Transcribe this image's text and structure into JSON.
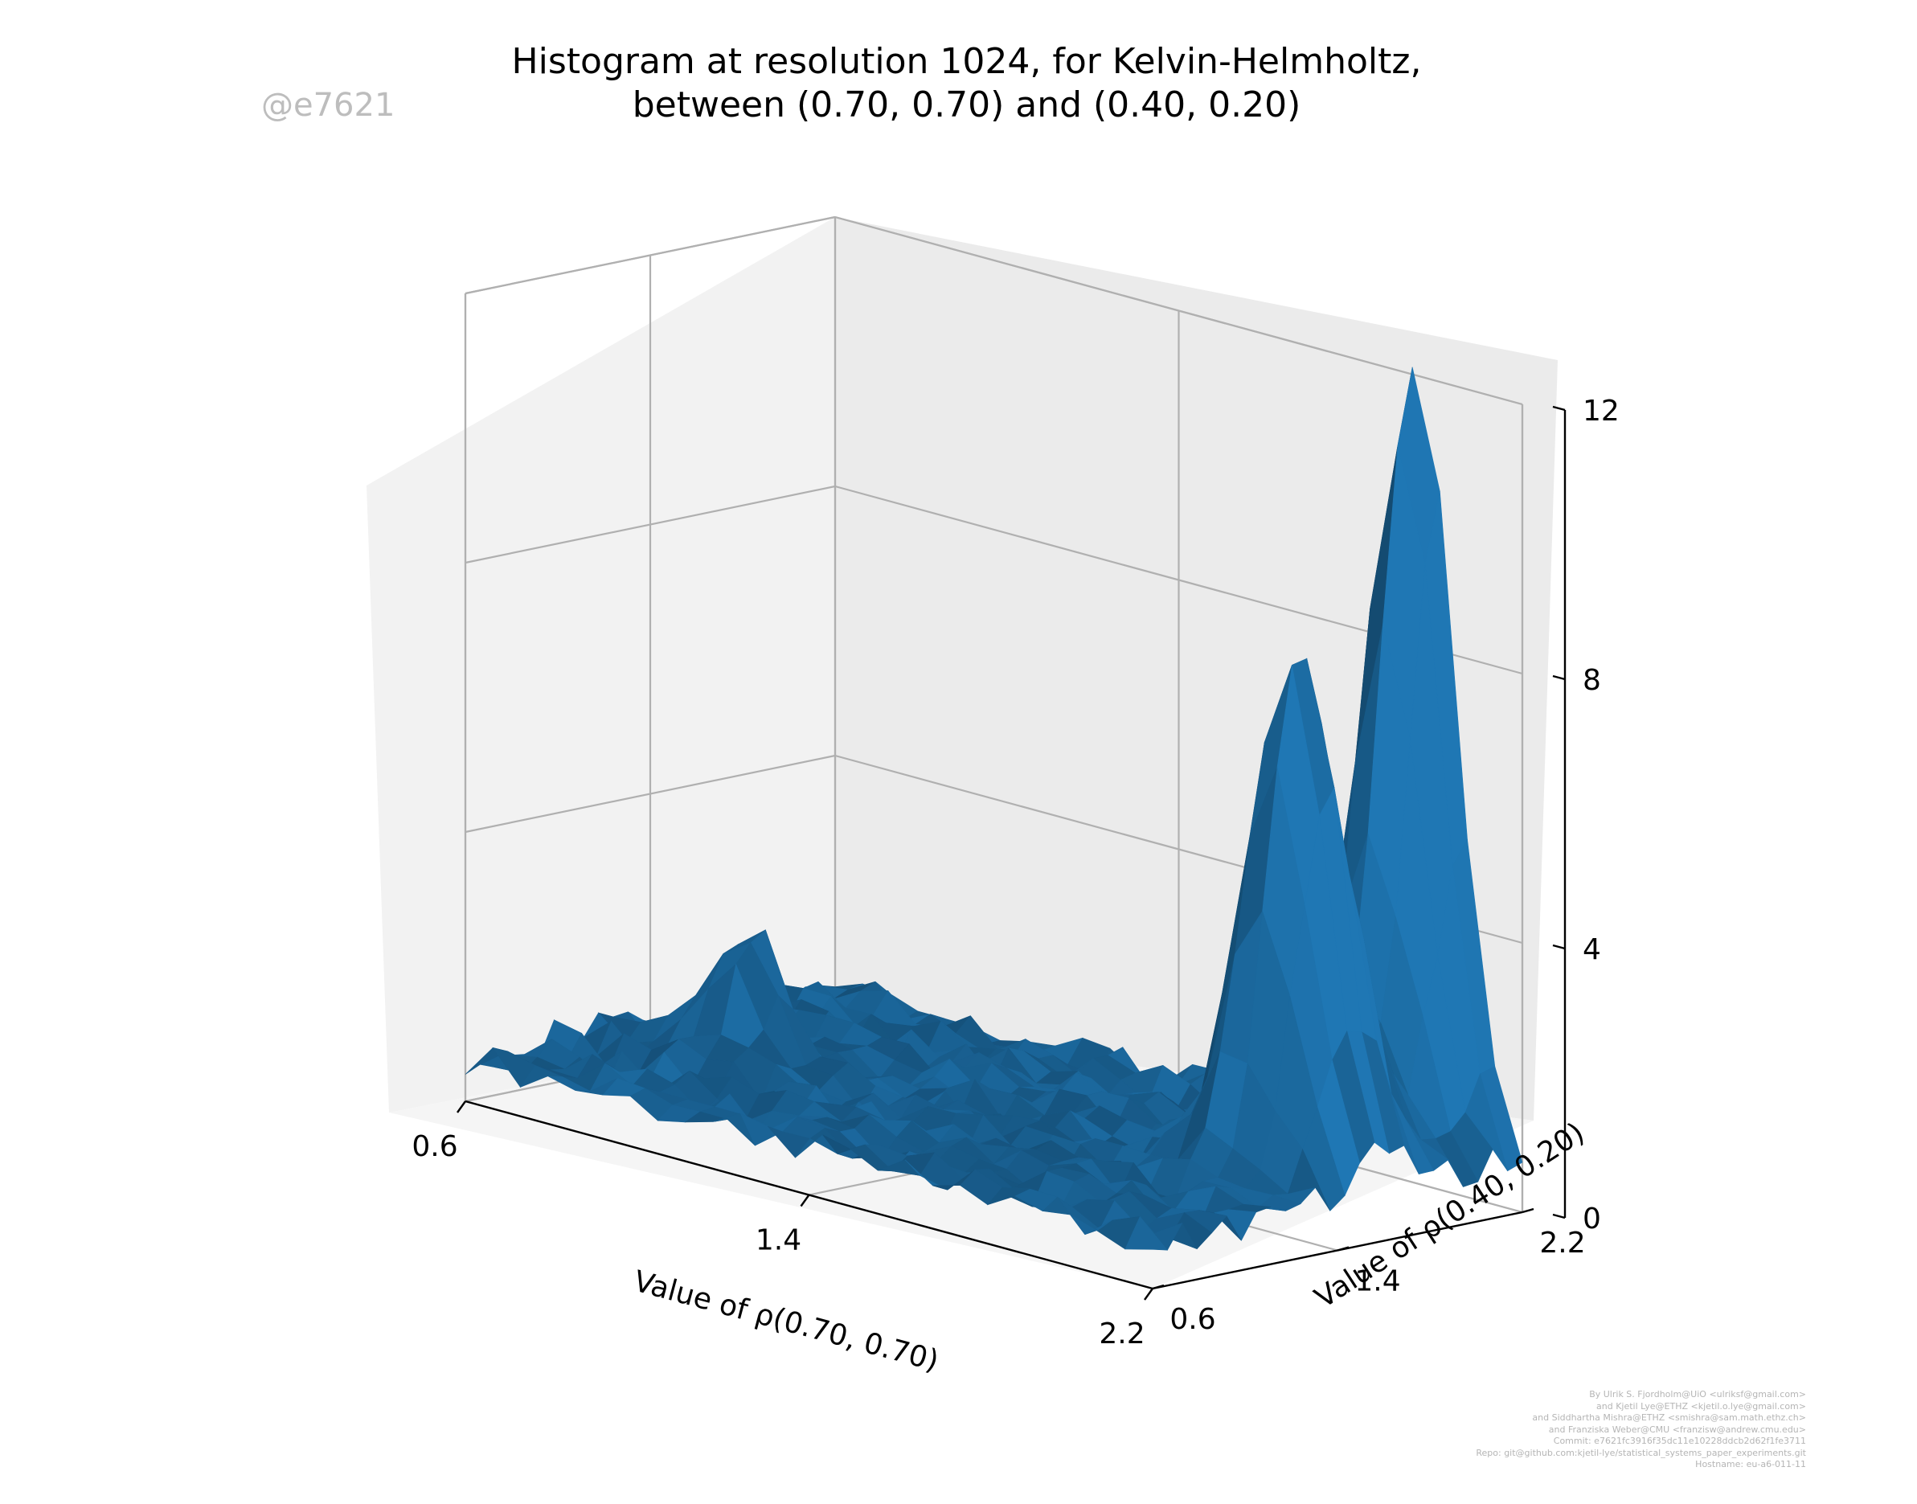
{
  "chart_data": {
    "type": "surface3d",
    "title_line1": "Histogram at resolution 1024, for Kelvin-Helmholtz,",
    "title_line2": "between (0.70, 0.70) and (0.40, 0.20)",
    "xlabel": "Value of ρ(0.70, 0.70)",
    "ylabel": "Value of ρ(0.40, 0.20)",
    "zlabel": "",
    "xlim": [
      0.6,
      2.2
    ],
    "ylim": [
      0.6,
      2.2
    ],
    "zlim": [
      0,
      12
    ],
    "x_ticks": [
      "0.6",
      "1.4",
      "2.2"
    ],
    "y_ticks": [
      "0.6",
      "1.4",
      "2.2"
    ],
    "z_ticks": [
      "0",
      "4",
      "8",
      "12"
    ],
    "series_color": "#1f77b4",
    "peaks": [
      {
        "x": 1.95,
        "y": 2.2,
        "z": 11.6
      },
      {
        "x": 2.0,
        "y": 1.6,
        "z": 7.9
      },
      {
        "x": 0.9,
        "y": 1.25,
        "z": 2.0
      }
    ],
    "base_level": 0.4
  },
  "watermark": "@e7621",
  "credits": [
    "By Ulrik S. Fjordholm@UiO <ulriksf@gmail.com>",
    "and Kjetil Lye@ETHZ <kjetil.o.lye@gmail.com>",
    "and Siddhartha Mishra@ETHZ <smishra@sam.math.ethz.ch>",
    "and Franziska Weber@CMU <franzisw@andrew.cmu.edu>",
    "Commit: e7621fc3916f35dc11e10228ddcb2d62f1fe3711",
    "Repo: git@github.com:kjetil-lye/statistical_systems_paper_experiments.git",
    "Hostname: eu-a6-011-11"
  ]
}
